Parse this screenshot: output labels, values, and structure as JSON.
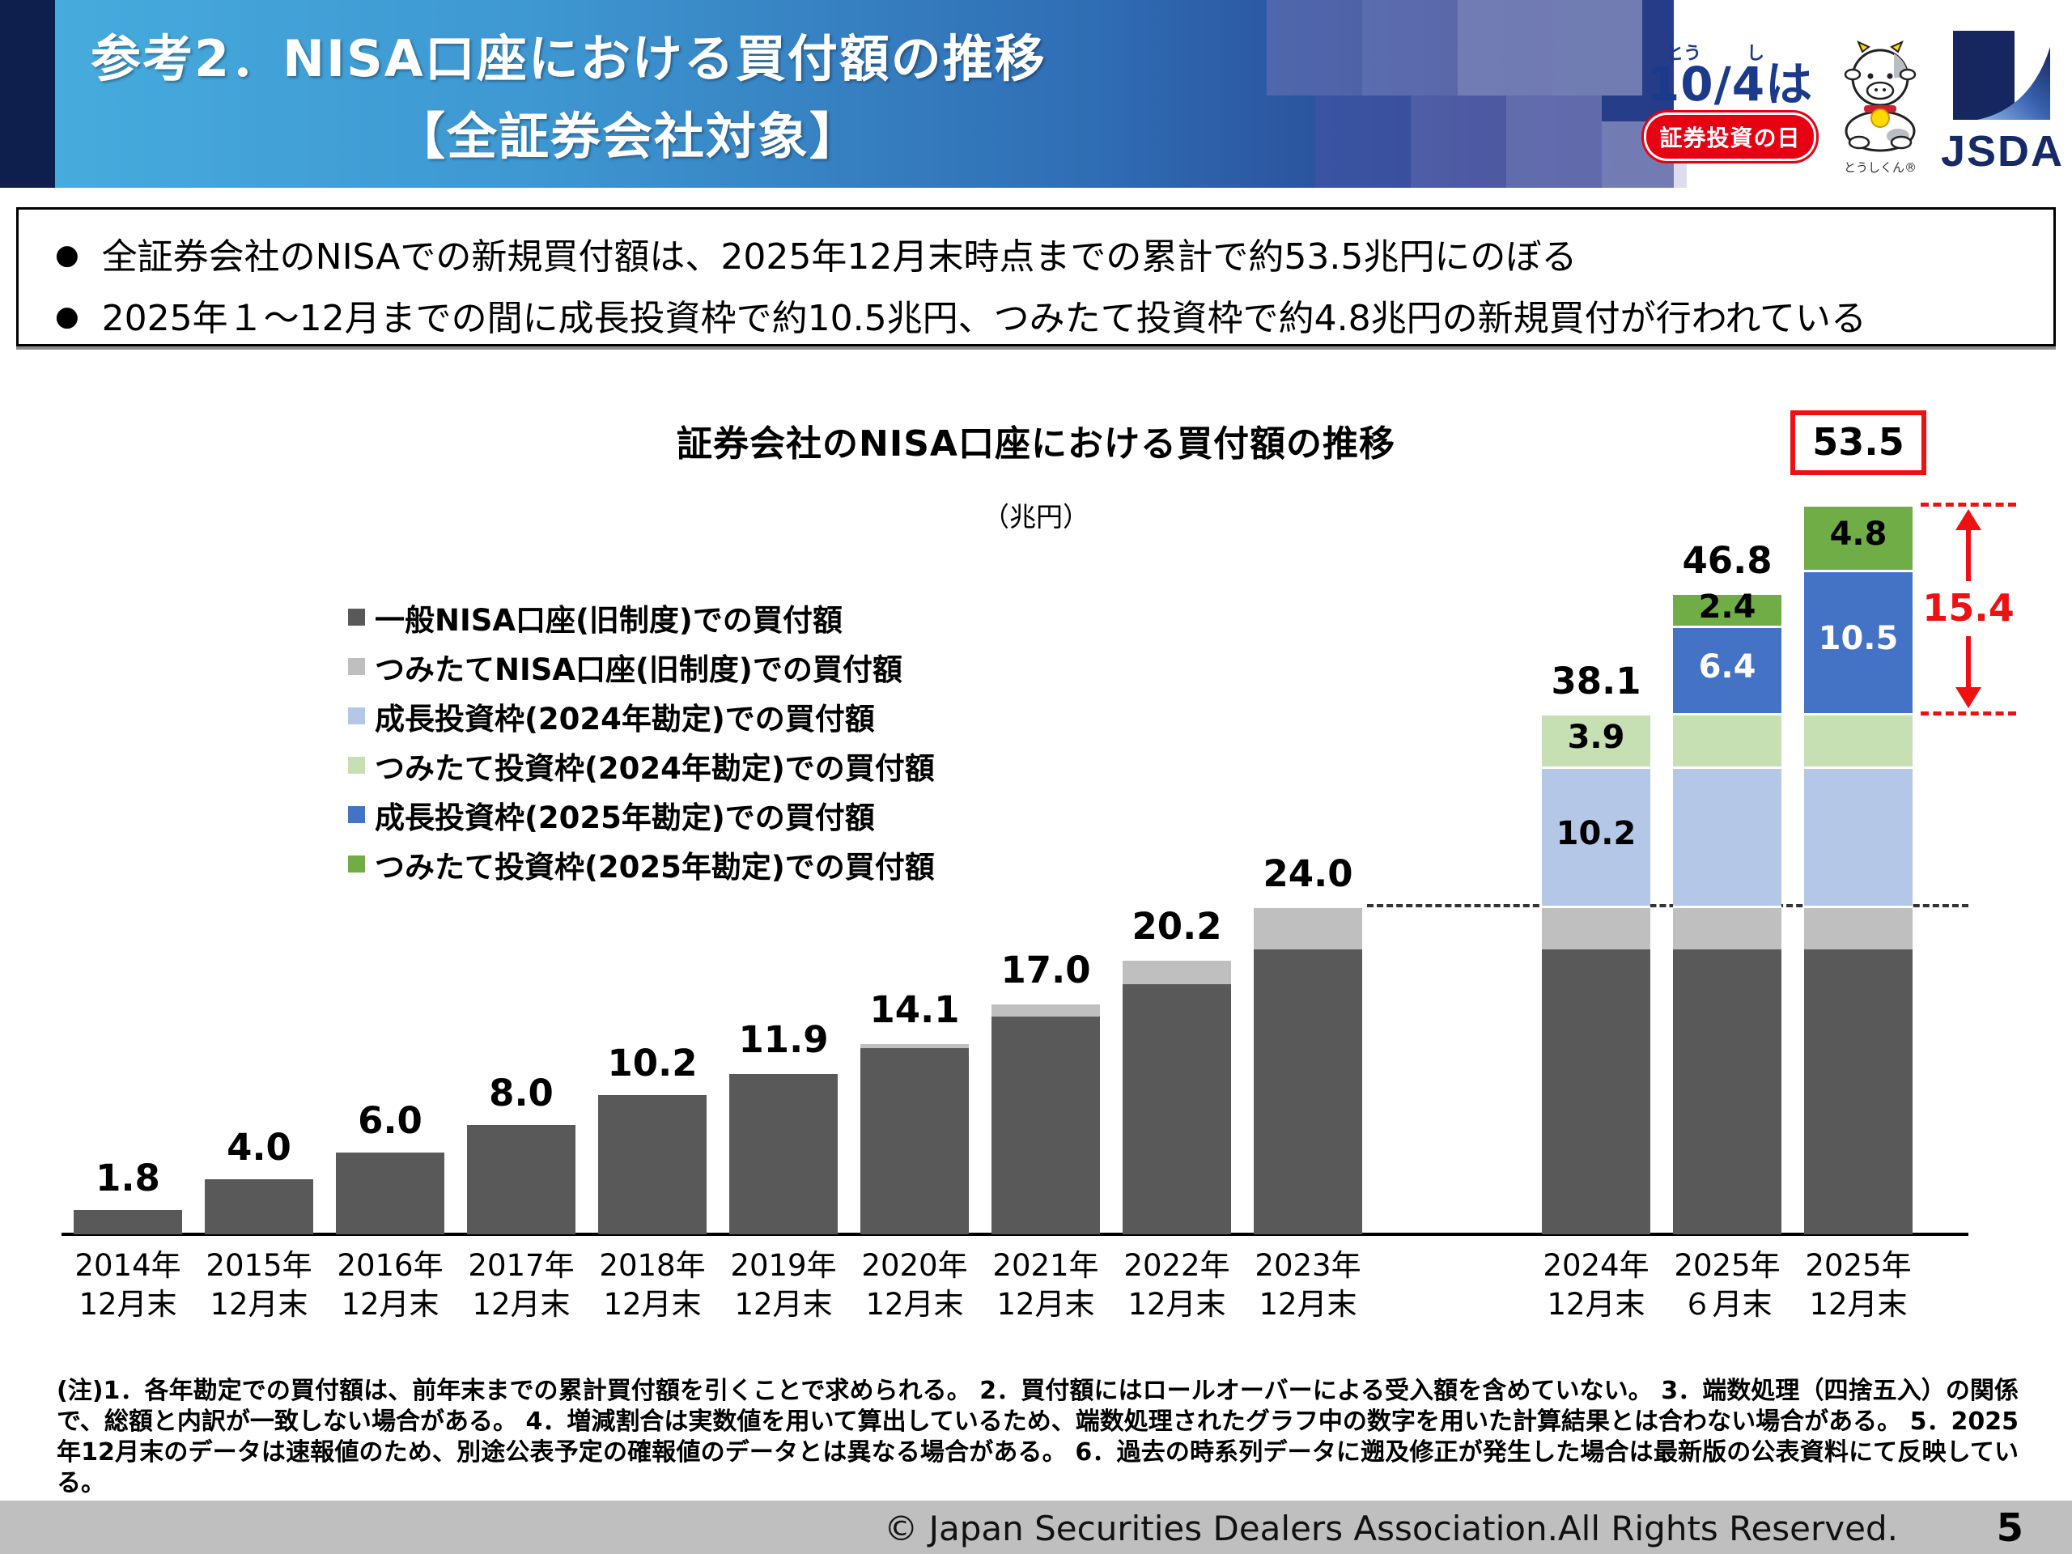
{
  "header": {
    "title_line1": "参考2．NISA口座における買付額の推移",
    "title_line2": "【全証券会社対象】",
    "logo_1004": {
      "furigana_tou": "とう",
      "furigana_shi": "し",
      "main": "10/4は",
      "red_badge": "証券投資の日"
    },
    "mascot_caption": "とうしくん®",
    "jsda_logo_text": "JSDA"
  },
  "summary": {
    "bullet1": "全証券会社のNISAでの新規買付額は、2025年12月末時点までの累計で約53.5兆円にのぼる",
    "bullet2": "2025年１～12月までの間に成長投資枠で約10.5兆円、つみたて投資枠で約4.8兆円の新規買付が行われている"
  },
  "chart_data": {
    "type": "bar",
    "subtype": "stacked",
    "title": "証券会社のNISA口座における買付額の推移",
    "unit_label": "（兆円）",
    "ylim": [
      0,
      56
    ],
    "colors": {
      "general_nisa": "#595959",
      "tsumitate_nisa_old": "#bfbfbf",
      "growth_2024": "#b4c7e7",
      "tsumitate_2024": "#c6e0b4",
      "growth_2025": "#4472c4",
      "tsumitate_2025": "#70ad47"
    },
    "legend": [
      {
        "key": "general_nisa",
        "label": "一般NISA口座(旧制度)での買付額"
      },
      {
        "key": "tsumitate_nisa_old",
        "label": "つみたてNISA口座(旧制度)での買付額"
      },
      {
        "key": "growth_2024",
        "label": "成長投資枠(2024年勘定)での買付額"
      },
      {
        "key": "tsumitate_2024",
        "label": "つみたて投資枠(2024年勘定)での買付額"
      },
      {
        "key": "growth_2025",
        "label": "成長投資枠(2025年勘定)での買付額"
      },
      {
        "key": "tsumitate_2025",
        "label": "つみたて投資枠(2025年勘定)での買付額"
      }
    ],
    "bars": [
      {
        "label_line1": "2014年",
        "label_line2": "12月末",
        "total_label": "1.8",
        "segments": [
          {
            "k": "general_nisa",
            "v": 1.8
          }
        ]
      },
      {
        "label_line1": "2015年",
        "label_line2": "12月末",
        "total_label": "4.0",
        "segments": [
          {
            "k": "general_nisa",
            "v": 4.0
          }
        ]
      },
      {
        "label_line1": "2016年",
        "label_line2": "12月末",
        "total_label": "6.0",
        "segments": [
          {
            "k": "general_nisa",
            "v": 6.0
          }
        ]
      },
      {
        "label_line1": "2017年",
        "label_line2": "12月末",
        "total_label": "8.0",
        "segments": [
          {
            "k": "general_nisa",
            "v": 8.0
          }
        ]
      },
      {
        "label_line1": "2018年",
        "label_line2": "12月末",
        "total_label": "10.2",
        "segments": [
          {
            "k": "general_nisa",
            "v": 10.2
          }
        ]
      },
      {
        "label_line1": "2019年",
        "label_line2": "12月末",
        "total_label": "11.9",
        "segments": [
          {
            "k": "general_nisa",
            "v": 11.7
          },
          {
            "k": "tsumitate_nisa_old",
            "v": 0.2
          }
        ]
      },
      {
        "label_line1": "2020年",
        "label_line2": "12月末",
        "total_label": "14.1",
        "segments": [
          {
            "k": "general_nisa",
            "v": 13.6
          },
          {
            "k": "tsumitate_nisa_old",
            "v": 0.5
          }
        ]
      },
      {
        "label_line1": "2021年",
        "label_line2": "12月末",
        "total_label": "17.0",
        "segments": [
          {
            "k": "general_nisa",
            "v": 15.9
          },
          {
            "k": "tsumitate_nisa_old",
            "v": 1.1
          }
        ]
      },
      {
        "label_line1": "2022年",
        "label_line2": "12月末",
        "total_label": "20.2",
        "segments": [
          {
            "k": "general_nisa",
            "v": 18.3
          },
          {
            "k": "tsumitate_nisa_old",
            "v": 1.9
          }
        ]
      },
      {
        "label_line1": "2023年",
        "label_line2": "12月末",
        "total_label": "24.0",
        "segments": [
          {
            "k": "general_nisa",
            "v": 20.8
          },
          {
            "k": "tsumitate_nisa_old",
            "v": 3.2
          }
        ]
      },
      {
        "label_line1": "2024年",
        "label_line2": "12月末",
        "total_label": "38.1",
        "gap_before": true,
        "segments": [
          {
            "k": "general_nisa",
            "v": 20.8
          },
          {
            "k": "tsumitate_nisa_old",
            "v": 3.2
          },
          {
            "k": "growth_2024",
            "v": 10.2,
            "label": "10.2",
            "label_color": "#000000"
          },
          {
            "k": "tsumitate_2024",
            "v": 3.9,
            "label": "3.9",
            "label_color": "#000000"
          }
        ]
      },
      {
        "label_line1": "2025年",
        "label_line2": "６月末",
        "total_label": "46.8",
        "segments": [
          {
            "k": "general_nisa",
            "v": 20.8
          },
          {
            "k": "tsumitate_nisa_old",
            "v": 3.2
          },
          {
            "k": "growth_2024",
            "v": 10.2
          },
          {
            "k": "tsumitate_2024",
            "v": 3.9
          },
          {
            "k": "growth_2025",
            "v": 6.4,
            "label": "6.4",
            "label_color": "#ffffff"
          },
          {
            "k": "tsumitate_2025",
            "v": 2.4,
            "label": "2.4",
            "label_color": "#000000"
          }
        ]
      },
      {
        "label_line1": "2025年",
        "label_line2": "12月末",
        "total_label": "53.5",
        "total_boxed": true,
        "segments": [
          {
            "k": "general_nisa",
            "v": 20.8
          },
          {
            "k": "tsumitate_nisa_old",
            "v": 3.2
          },
          {
            "k": "growth_2024",
            "v": 10.2
          },
          {
            "k": "tsumitate_2024",
            "v": 3.9
          },
          {
            "k": "growth_2025",
            "v": 10.5,
            "label": "10.5",
            "label_color": "#ffffff"
          },
          {
            "k": "tsumitate_2025",
            "v": 4.8,
            "label": "4.8",
            "label_color": "#000000"
          }
        ]
      }
    ],
    "annotations": {
      "reference_line_value": 24.0,
      "reference_line_from_bar_index": 9,
      "delta_label": "15.4",
      "delta_from_value": 38.1,
      "delta_to_value": 53.4,
      "accent_color": "#ee1111"
    },
    "legend_position": "upper-left",
    "grid": false
  },
  "footnote": "(注)1．各年勘定での買付額は、前年末までの累計買付額を引くことで求められる。 2．買付額にはロールオーバーによる受入額を含めていない。 3．端数処理（四捨五入）の関係で、総額と内訳が一致しない場合がある。 4．増減割合は実数値を用いて算出しているため、端数処理されたグラフ中の数字を用いた計算結果とは合わない場合がある。 5．2025年12月末のデータは速報値のため、別途公表予定の確報値のデータとは異なる場合がある。 6．過去の時系列データに遡及修正が発生した場合は最新版の公表資料にて反映している。",
  "footer": {
    "copyright": "© Japan Securities Dealers Association.All Rights Reserved.",
    "page_number": "5"
  }
}
